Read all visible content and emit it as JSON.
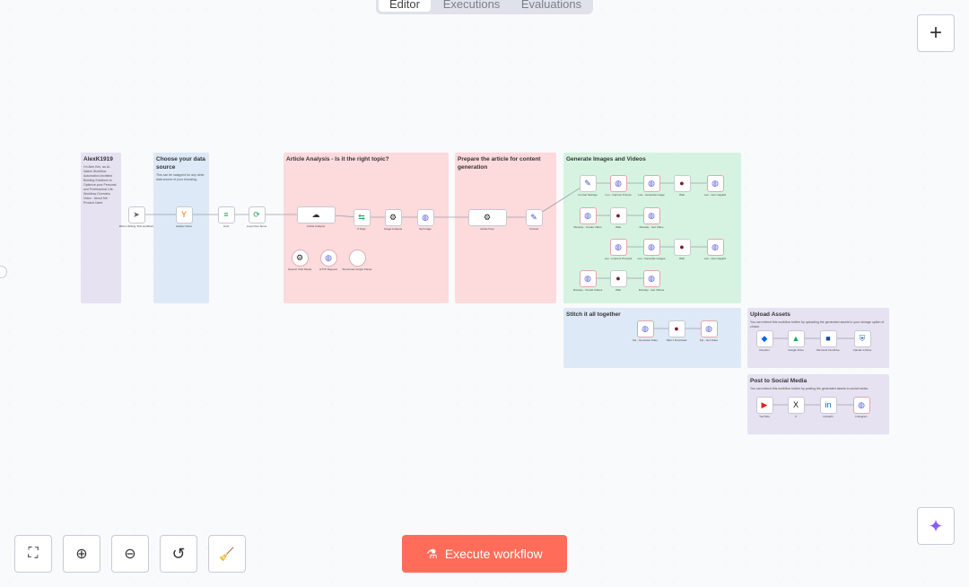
{
  "tabs": [
    "Editor",
    "Executions",
    "Evaluations"
  ],
  "toolbar": {
    "zoom_to_fit": "fit-icon",
    "zoom_in": "zoom-in-icon",
    "zoom_out": "zoom-out-icon",
    "reset": "undo-icon",
    "tidy": "broom-icon"
  },
  "execute_label": "Execute workflow",
  "accent": "#ff6d5a",
  "notes": [
    {
      "title": "AlexK1919",
      "body": "I'm Alex Kim, an AI-Native Workflow Automation Architect Building Solutions to Optimize your Personal and Professional Life. Workflow Overview Video · About Me · Product Used",
      "color": "#e6e2f2"
    },
    {
      "title": "Choose your data source",
      "body": "This can be swapped for any other data source of your choosing.",
      "color": "#dde9f6"
    },
    {
      "title": "Article Analysis - Is it the right topic?",
      "body": "",
      "color": "#fddadc"
    },
    {
      "title": "Prepare the article for content generation",
      "body": "",
      "color": "#fddadc"
    },
    {
      "title": "Generate Images and Videos",
      "body": "",
      "color": "#d6f3e1"
    },
    {
      "title": "Stitch it all together",
      "body": "",
      "color": "#dde9f6"
    },
    {
      "title": "Upload Assets",
      "body": "You can extend this workflow further by uploading the generated assets to your storage option of choice.",
      "color": "#e6e2f2"
    },
    {
      "title": "Post to Social Media",
      "body": "You can extend this workflow further by posting the generated assets to social media.",
      "color": "#e6e2f2"
    }
  ],
  "nodes": [
    {
      "label": "When clicking 'Test workflow'",
      "icon": "cursor-icon"
    },
    {
      "label": "Hacker News",
      "icon": "hackernews-icon"
    },
    {
      "label": "Limit",
      "icon": "limit-icon"
    },
    {
      "label": "Loop Over Items",
      "icon": "loop-icon"
    },
    {
      "label": "Article Analysis",
      "icon": "agent-icon"
    },
    {
      "label": "If Topic",
      "icon": "if-icon"
    },
    {
      "label": "Image Analysis",
      "icon": "openai-icon"
    },
    {
      "label": "Set Image",
      "icon": "globe-icon"
    },
    {
      "label": "Article Prep",
      "icon": "openai-icon"
    },
    {
      "label": "Format",
      "icon": "pencil-icon"
    },
    {
      "label": "OpenAI Chat Model",
      "icon": "openai-icon"
    },
    {
      "label": "HTTP Request",
      "icon": "globe-icon"
    },
    {
      "label": "Structured Output Parser",
      "icon": "code-icon"
    },
    {
      "label": "Format Settings",
      "icon": "pencil-icon"
    },
    {
      "label": "Leo - Improve Prompt",
      "icon": "globe-icon"
    },
    {
      "label": "Leo - Generate Image",
      "icon": "globe-icon"
    },
    {
      "label": "Wait",
      "icon": "wait-icon"
    },
    {
      "label": "Leo - Get imageId",
      "icon": "globe-icon"
    },
    {
      "label": "Runway - Create Video",
      "icon": "globe-icon"
    },
    {
      "label": "Wait",
      "icon": "wait-icon"
    },
    {
      "label": "Runway - Get Video",
      "icon": "globe-icon"
    },
    {
      "label": "Leo - Improve Prompts",
      "icon": "globe-icon"
    },
    {
      "label": "Leo - Generate Images",
      "icon": "globe-icon"
    },
    {
      "label": "Wait",
      "icon": "wait-icon"
    },
    {
      "label": "Leo - Get imageId",
      "icon": "globe-icon"
    },
    {
      "label": "Runway - Create Videos",
      "icon": "globe-icon"
    },
    {
      "label": "Wait",
      "icon": "wait-icon"
    },
    {
      "label": "Runway - Get Videos",
      "icon": "globe-icon"
    },
    {
      "label": "Kie - Generate Video",
      "icon": "globe-icon"
    },
    {
      "label": "Wait 1 Download",
      "icon": "wait-icon"
    },
    {
      "label": "Kie - Get Video",
      "icon": "globe-icon"
    },
    {
      "label": "Dropbox",
      "icon": "dropbox-icon"
    },
    {
      "label": "Google Drive",
      "icon": "gdrive-icon"
    },
    {
      "label": "Microsoft OneDrive",
      "icon": "onedrive-icon"
    },
    {
      "label": "Upload to Drive",
      "icon": "shield-icon"
    },
    {
      "label": "YouTube",
      "icon": "youtube-icon"
    },
    {
      "label": "X",
      "icon": "x-icon"
    },
    {
      "label": "LinkedIn",
      "icon": "linkedin-icon"
    },
    {
      "label": "Instagram",
      "icon": "globe-icon"
    }
  ]
}
